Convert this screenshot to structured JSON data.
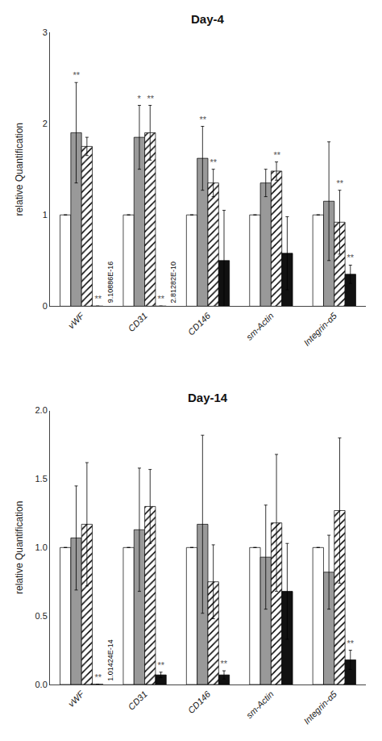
{
  "chart_data": [
    {
      "type": "bar",
      "title": "Day-4",
      "ylabel": "relative Quantification",
      "categories": [
        "vWF",
        "CD31",
        "CD146",
        "sm-Actin",
        "Integrin-α5"
      ],
      "series": [
        {
          "color": "white",
          "values": [
            1.0,
            1.0,
            1.0,
            1.0,
            1.0
          ],
          "errors": [
            0.0,
            0.0,
            0.0,
            0.0,
            0.0
          ]
        },
        {
          "color": "#999999",
          "values": [
            1.9,
            1.85,
            1.62,
            1.35,
            1.15
          ],
          "errors": [
            0.55,
            0.35,
            0.35,
            0.15,
            0.65
          ]
        },
        {
          "color": "white",
          "marker": "hatch",
          "values": [
            1.75,
            1.9,
            1.35,
            1.48,
            0.92
          ],
          "errors": [
            0.1,
            0.3,
            0.15,
            0.1,
            0.35
          ]
        },
        {
          "color": "#111111",
          "values": [
            0.001,
            0.001,
            0.5,
            0.58,
            0.35
          ],
          "errors": [
            0.0,
            0.0,
            0.55,
            0.4,
            0.1
          ]
        }
      ],
      "ylim": [
        0,
        3.0
      ],
      "yticks": [
        0,
        1,
        2,
        3
      ],
      "grid": false,
      "annotations": [
        {
          "category": "vWF",
          "series": 1,
          "text": "**"
        },
        {
          "category": "vWF",
          "series": 3,
          "text": "**"
        },
        {
          "category": "vWF",
          "series": 3,
          "text": "9.10886E-16"
        },
        {
          "category": "CD31",
          "series": 1,
          "text": "*"
        },
        {
          "category": "CD31",
          "series": 2,
          "text": "**"
        },
        {
          "category": "CD31",
          "series": 3,
          "text": "**"
        },
        {
          "category": "CD31",
          "series": 3,
          "text": "2.81282E-10"
        },
        {
          "category": "CD146",
          "series": 1,
          "text": "**"
        },
        {
          "category": "CD146",
          "series": 2,
          "text": "**"
        },
        {
          "category": "sm-Actin",
          "series": 2,
          "text": "**"
        },
        {
          "category": "Integrin-α5",
          "series": 2,
          "text": "**"
        },
        {
          "category": "Integrin-α5",
          "series": 3,
          "text": "**"
        }
      ]
    },
    {
      "type": "bar",
      "title": "Day-14",
      "ylabel": "relative Quantification",
      "categories": [
        "vWF",
        "CD31",
        "CD146",
        "sm-Actin",
        "Integrin-α5"
      ],
      "series": [
        {
          "color": "white",
          "values": [
            1.0,
            1.0,
            1.0,
            1.0,
            1.0
          ],
          "errors": [
            0.0,
            0.0,
            0.0,
            0.0,
            0.0
          ]
        },
        {
          "color": "#999999",
          "values": [
            1.07,
            1.13,
            1.17,
            0.93,
            0.82
          ],
          "errors": [
            0.38,
            0.45,
            0.65,
            0.38,
            0.27
          ]
        },
        {
          "color": "white",
          "marker": "hatch",
          "values": [
            1.17,
            1.3,
            0.75,
            1.18,
            1.27
          ],
          "errors": [
            0.45,
            0.27,
            0.27,
            0.5,
            0.53
          ]
        },
        {
          "color": "#111111",
          "values": [
            0.001,
            0.07,
            0.07,
            0.68,
            0.18
          ],
          "errors": [
            0.0,
            0.02,
            0.03,
            0.35,
            0.07
          ]
        }
      ],
      "ylim": [
        0,
        2.0
      ],
      "yticks": [
        {
          "value": 0.0,
          "label": "0.0"
        },
        0.5,
        {
          "value": 1.0,
          "label": "1.0"
        },
        1.5,
        {
          "value": 2.0,
          "label": "2.0"
        }
      ],
      "grid": false,
      "annotations": [
        {
          "category": "vWF",
          "series": 3,
          "text": "**"
        },
        {
          "category": "vWF",
          "series": 3,
          "text": "1.01424E-14"
        },
        {
          "category": "CD31",
          "series": 3,
          "text": "**"
        },
        {
          "category": "CD146",
          "series": 3,
          "text": "**"
        },
        {
          "category": "Integrin-α5",
          "series": 3,
          "text": "**"
        }
      ]
    }
  ]
}
